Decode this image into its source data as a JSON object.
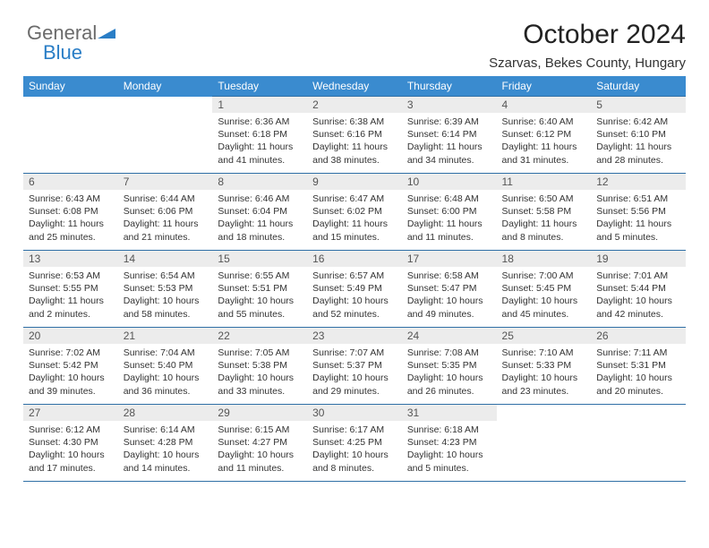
{
  "brand": {
    "line1": "General",
    "line2": "Blue"
  },
  "header": {
    "title": "October 2024",
    "location": "Szarvas, Bekes County, Hungary"
  },
  "colors": {
    "header_bg": "#3a8bcf",
    "header_text": "#ffffff",
    "row_divider": "#2f6fa6",
    "daynum_bg": "#ececec",
    "text": "#333333",
    "title": "#222222"
  },
  "weekdays": [
    "Sunday",
    "Monday",
    "Tuesday",
    "Wednesday",
    "Thursday",
    "Friday",
    "Saturday"
  ],
  "lead_blanks": 2,
  "days": [
    {
      "n": 1,
      "sr": "6:36 AM",
      "ss": "6:18 PM",
      "dl": "11 hours and 41 minutes."
    },
    {
      "n": 2,
      "sr": "6:38 AM",
      "ss": "6:16 PM",
      "dl": "11 hours and 38 minutes."
    },
    {
      "n": 3,
      "sr": "6:39 AM",
      "ss": "6:14 PM",
      "dl": "11 hours and 34 minutes."
    },
    {
      "n": 4,
      "sr": "6:40 AM",
      "ss": "6:12 PM",
      "dl": "11 hours and 31 minutes."
    },
    {
      "n": 5,
      "sr": "6:42 AM",
      "ss": "6:10 PM",
      "dl": "11 hours and 28 minutes."
    },
    {
      "n": 6,
      "sr": "6:43 AM",
      "ss": "6:08 PM",
      "dl": "11 hours and 25 minutes."
    },
    {
      "n": 7,
      "sr": "6:44 AM",
      "ss": "6:06 PM",
      "dl": "11 hours and 21 minutes."
    },
    {
      "n": 8,
      "sr": "6:46 AM",
      "ss": "6:04 PM",
      "dl": "11 hours and 18 minutes."
    },
    {
      "n": 9,
      "sr": "6:47 AM",
      "ss": "6:02 PM",
      "dl": "11 hours and 15 minutes."
    },
    {
      "n": 10,
      "sr": "6:48 AM",
      "ss": "6:00 PM",
      "dl": "11 hours and 11 minutes."
    },
    {
      "n": 11,
      "sr": "6:50 AM",
      "ss": "5:58 PM",
      "dl": "11 hours and 8 minutes."
    },
    {
      "n": 12,
      "sr": "6:51 AM",
      "ss": "5:56 PM",
      "dl": "11 hours and 5 minutes."
    },
    {
      "n": 13,
      "sr": "6:53 AM",
      "ss": "5:55 PM",
      "dl": "11 hours and 2 minutes."
    },
    {
      "n": 14,
      "sr": "6:54 AM",
      "ss": "5:53 PM",
      "dl": "10 hours and 58 minutes."
    },
    {
      "n": 15,
      "sr": "6:55 AM",
      "ss": "5:51 PM",
      "dl": "10 hours and 55 minutes."
    },
    {
      "n": 16,
      "sr": "6:57 AM",
      "ss": "5:49 PM",
      "dl": "10 hours and 52 minutes."
    },
    {
      "n": 17,
      "sr": "6:58 AM",
      "ss": "5:47 PM",
      "dl": "10 hours and 49 minutes."
    },
    {
      "n": 18,
      "sr": "7:00 AM",
      "ss": "5:45 PM",
      "dl": "10 hours and 45 minutes."
    },
    {
      "n": 19,
      "sr": "7:01 AM",
      "ss": "5:44 PM",
      "dl": "10 hours and 42 minutes."
    },
    {
      "n": 20,
      "sr": "7:02 AM",
      "ss": "5:42 PM",
      "dl": "10 hours and 39 minutes."
    },
    {
      "n": 21,
      "sr": "7:04 AM",
      "ss": "5:40 PM",
      "dl": "10 hours and 36 minutes."
    },
    {
      "n": 22,
      "sr": "7:05 AM",
      "ss": "5:38 PM",
      "dl": "10 hours and 33 minutes."
    },
    {
      "n": 23,
      "sr": "7:07 AM",
      "ss": "5:37 PM",
      "dl": "10 hours and 29 minutes."
    },
    {
      "n": 24,
      "sr": "7:08 AM",
      "ss": "5:35 PM",
      "dl": "10 hours and 26 minutes."
    },
    {
      "n": 25,
      "sr": "7:10 AM",
      "ss": "5:33 PM",
      "dl": "10 hours and 23 minutes."
    },
    {
      "n": 26,
      "sr": "7:11 AM",
      "ss": "5:31 PM",
      "dl": "10 hours and 20 minutes."
    },
    {
      "n": 27,
      "sr": "6:12 AM",
      "ss": "4:30 PM",
      "dl": "10 hours and 17 minutes."
    },
    {
      "n": 28,
      "sr": "6:14 AM",
      "ss": "4:28 PM",
      "dl": "10 hours and 14 minutes."
    },
    {
      "n": 29,
      "sr": "6:15 AM",
      "ss": "4:27 PM",
      "dl": "10 hours and 11 minutes."
    },
    {
      "n": 30,
      "sr": "6:17 AM",
      "ss": "4:25 PM",
      "dl": "10 hours and 8 minutes."
    },
    {
      "n": 31,
      "sr": "6:18 AM",
      "ss": "4:23 PM",
      "dl": "10 hours and 5 minutes."
    }
  ],
  "labels": {
    "sunrise": "Sunrise:",
    "sunset": "Sunset:",
    "daylight": "Daylight:"
  }
}
